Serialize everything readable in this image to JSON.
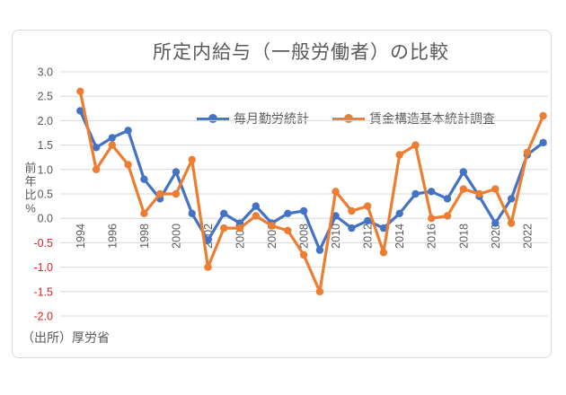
{
  "chart": {
    "title": "所定内給与（一般労働者）の比較",
    "y_axis_title": "前年比%",
    "source_note": "（出所）厚労省"
  },
  "chart_data": {
    "type": "line",
    "title": "所定内給与（一般労働者）の比較",
    "ylabel": "前年比%",
    "source": "（出所）厚労省",
    "x": [
      1994,
      1995,
      1996,
      1997,
      1998,
      1999,
      2000,
      2001,
      2002,
      2003,
      2004,
      2005,
      2006,
      2007,
      2008,
      2009,
      2010,
      2011,
      2012,
      2013,
      2014,
      2015,
      2016,
      2017,
      2018,
      2019,
      2020,
      2021,
      2022,
      2023
    ],
    "x_tick_labels": [
      "1994",
      "1996",
      "1998",
      "2000",
      "2002",
      "2004",
      "2006",
      "2008",
      "2010",
      "2012",
      "2014",
      "2016",
      "2018",
      "2020",
      "2022"
    ],
    "series": [
      {
        "name": "毎月勤労統計",
        "color": "#4472C4",
        "values": [
          2.2,
          1.45,
          1.65,
          1.8,
          0.8,
          0.4,
          0.95,
          0.1,
          -0.45,
          0.1,
          -0.1,
          0.25,
          -0.1,
          0.1,
          0.15,
          -0.65,
          0.05,
          -0.2,
          -0.05,
          -0.2,
          0.1,
          0.5,
          0.55,
          0.4,
          0.95,
          0.45,
          -0.1,
          0.4,
          1.3,
          1.55
        ]
      },
      {
        "name": "賃金構造基本統計調査",
        "color": "#ED7D31",
        "values": [
          2.6,
          1.0,
          1.5,
          1.1,
          0.1,
          0.5,
          0.5,
          1.2,
          -1.0,
          -0.2,
          -0.2,
          0.05,
          -0.15,
          -0.25,
          -0.75,
          -1.5,
          0.55,
          0.15,
          0.25,
          -0.7,
          1.3,
          1.5,
          0.0,
          0.05,
          0.6,
          0.5,
          0.6,
          -0.1,
          1.35,
          2.1
        ]
      }
    ],
    "ylim": [
      -2.0,
      3.0
    ],
    "y_ticks": [
      3.0,
      2.5,
      2.0,
      1.5,
      1.0,
      0.5,
      0.0,
      -0.5,
      -1.0,
      -1.5,
      -2.0
    ],
    "grid": true,
    "legend_position": "inside-top-center",
    "axis_text_color": "#595959",
    "negative_tick_color": "#E02020",
    "grid_color": "#D9D9D9"
  }
}
